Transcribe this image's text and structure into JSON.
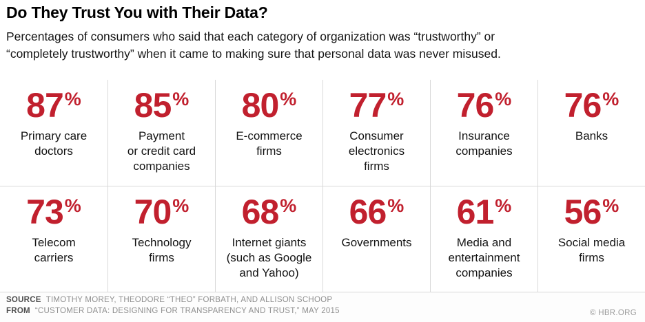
{
  "header": {
    "title": "Do They Trust You with Their Data?",
    "subtitle": "Percentages of consumers who said that each category of organization was “trustworthy” or\n“completely trustworthy” when it came to making sure that personal data was never misused."
  },
  "chart_data": {
    "type": "table",
    "title": "Do They Trust You with Their Data?",
    "subtitle": "Percentages of consumers who said that each category of organization was “trustworthy” or “completely trustworthy” when it came to making sure that personal data was never misused.",
    "unit": "%",
    "layout": "2 rows x 6 columns of large percentage callouts",
    "categories": [
      "Primary care doctors",
      "Payment or credit card companies",
      "E-commerce firms",
      "Consumer electronics firms",
      "Insurance companies",
      "Banks",
      "Telecom carriers",
      "Technology firms",
      "Internet giants (such as Google and Yahoo)",
      "Governments",
      "Media and entertainment companies",
      "Social media firms"
    ],
    "values": [
      87,
      85,
      80,
      77,
      76,
      76,
      73,
      70,
      68,
      66,
      61,
      56
    ],
    "cells": [
      {
        "value": "87",
        "label": "Primary care\ndoctors"
      },
      {
        "value": "85",
        "label": "Payment\nor credit card\ncompanies"
      },
      {
        "value": "80",
        "label": "E-commerce\nfirms"
      },
      {
        "value": "77",
        "label": "Consumer\nelectronics\nfirms"
      },
      {
        "value": "76",
        "label": "Insurance\ncompanies"
      },
      {
        "value": "76",
        "label": "Banks"
      },
      {
        "value": "73",
        "label": "Telecom\ncarriers"
      },
      {
        "value": "70",
        "label": "Technology\nfirms"
      },
      {
        "value": "68",
        "label": "Internet giants\n(such as Google\nand Yahoo)"
      },
      {
        "value": "66",
        "label": "Governments"
      },
      {
        "value": "61",
        "label": "Media and\nentertainment\ncompanies"
      },
      {
        "value": "56",
        "label": "Social media\nfirms"
      }
    ]
  },
  "footer": {
    "source_label": "SOURCE",
    "source_text": "TIMOTHY MOREY, THEODORE “THEO” FORBATH, AND ALLISON SCHOOP",
    "from_label": "FROM",
    "from_text": "“CUSTOMER DATA: DESIGNING FOR TRANSPARENCY AND TRUST,” MAY 2015",
    "copyright": "© HBR.ORG"
  },
  "colors": {
    "accent_red": "#c1202e",
    "divider": "#d8d8d8",
    "footer_gray": "#8f8f8f"
  }
}
